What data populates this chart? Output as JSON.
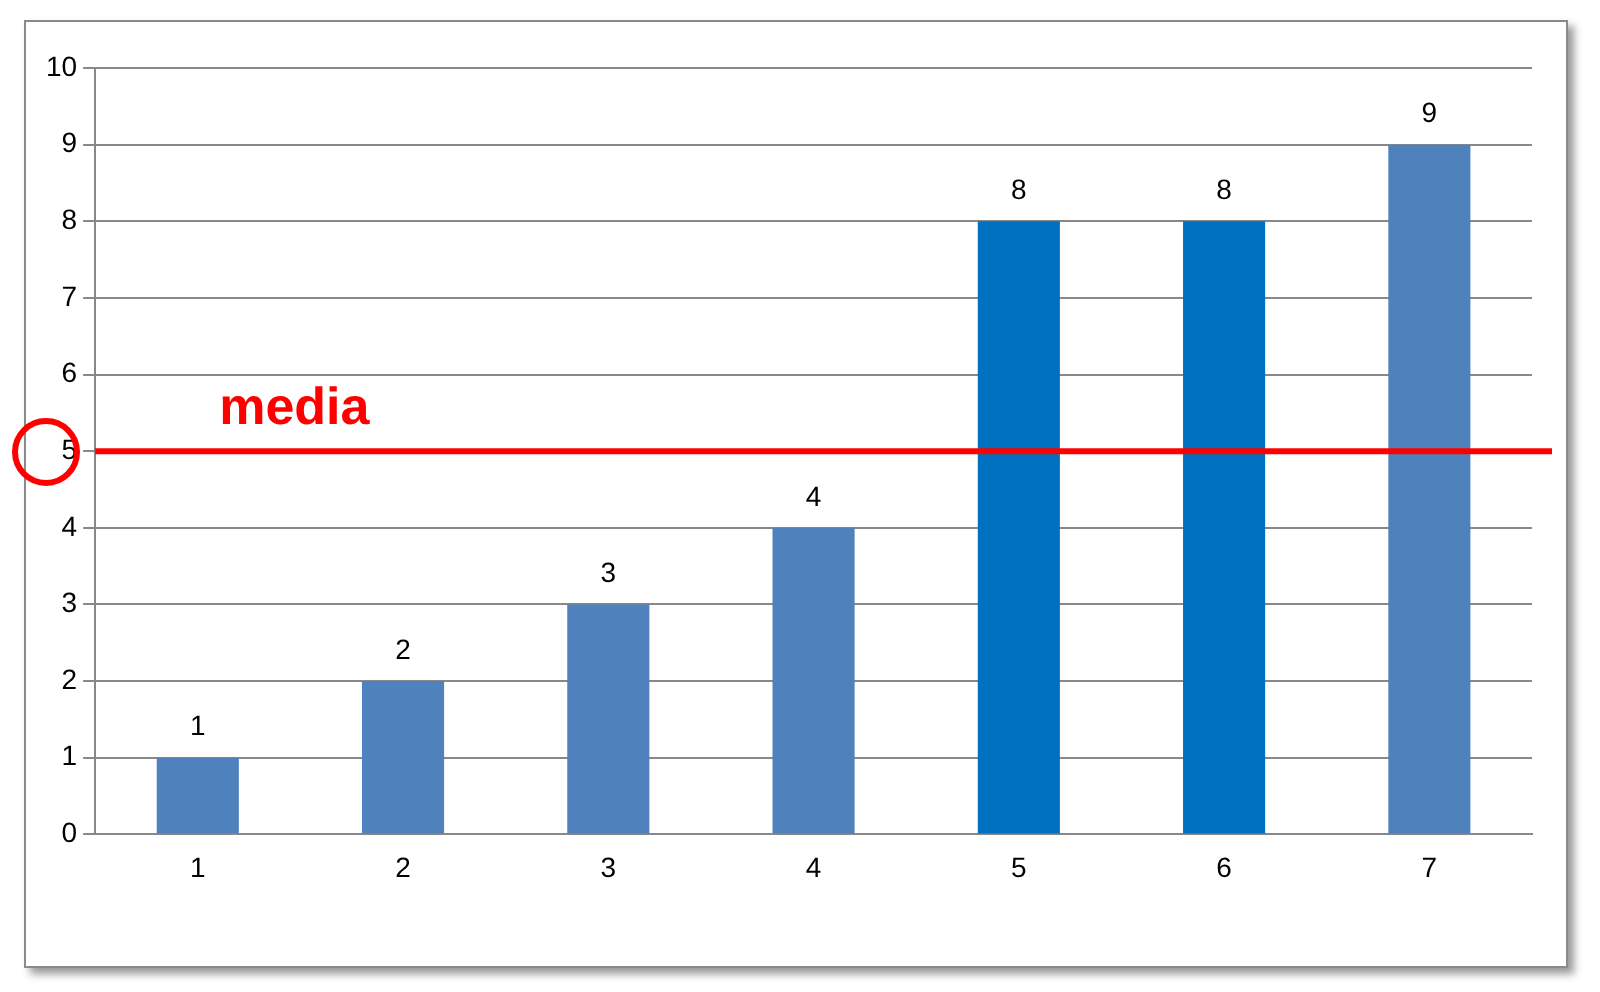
{
  "chart_data": {
    "type": "bar",
    "categories": [
      "1",
      "2",
      "3",
      "4",
      "5",
      "6",
      "7"
    ],
    "values": [
      1,
      2,
      3,
      4,
      8,
      8,
      9
    ],
    "colors": [
      "#4f81bd",
      "#4f81bd",
      "#4f81bd",
      "#4f81bd",
      "#0070c0",
      "#0070c0",
      "#4f81bd"
    ],
    "ylim": [
      0,
      10
    ],
    "yticks": [
      0,
      1,
      2,
      3,
      4,
      5,
      6,
      7,
      8,
      9,
      10
    ],
    "grid": "y",
    "data_labels": true,
    "legend": false,
    "ref_lines": [
      {
        "axis": "y",
        "value": 5,
        "label": "media",
        "color": "#ff0000"
      }
    ]
  }
}
